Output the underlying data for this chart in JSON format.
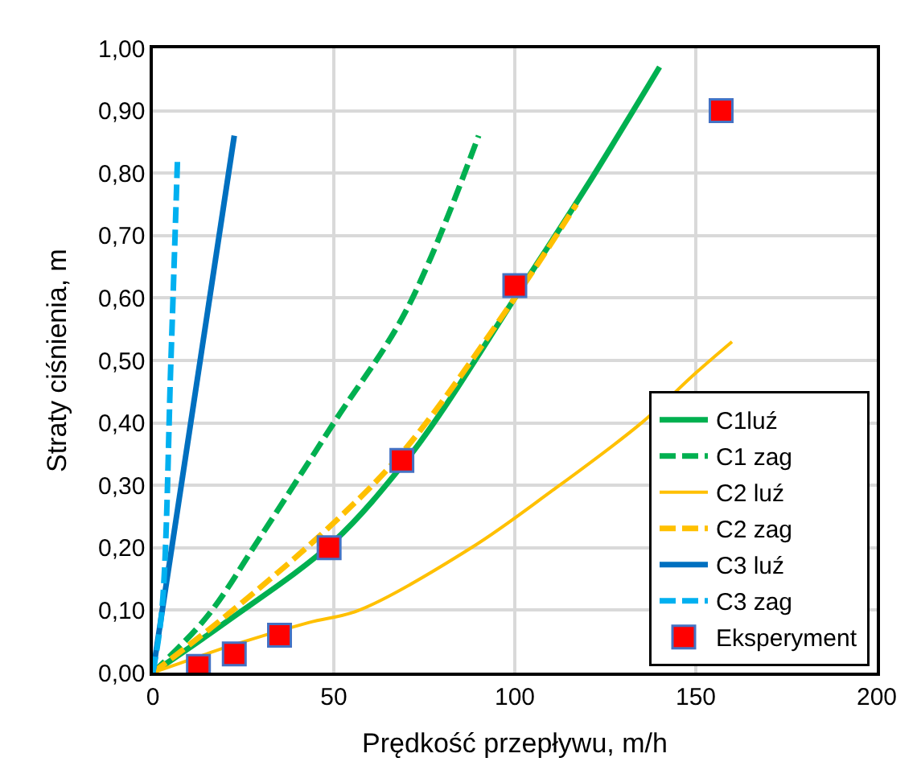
{
  "chart_data": {
    "type": "line",
    "xlabel": "Prędkość przepływu, m/h",
    "ylabel": "Straty ciśnienia, m",
    "xlim": [
      0,
      200
    ],
    "xticks": [
      0,
      50,
      100,
      150,
      200
    ],
    "ylim": [
      0,
      1
    ],
    "yticks": [
      {
        "value": 0,
        "label": "0,00"
      },
      {
        "value": 0.1,
        "label": "0,10"
      },
      {
        "value": 0.2,
        "label": "0,20"
      },
      {
        "value": 0.3,
        "label": "0,30"
      },
      {
        "value": 0.4,
        "label": "0,40"
      },
      {
        "value": 0.5,
        "label": "0,50"
      },
      {
        "value": 0.6,
        "label": "0,60"
      },
      {
        "value": 0.7,
        "label": "0,70"
      },
      {
        "value": 0.8,
        "label": "0,80"
      },
      {
        "value": 0.9,
        "label": "0,90"
      },
      {
        "value": 1,
        "label": "1,00"
      }
    ],
    "grid": true,
    "legend": "bottom right",
    "marker": "none",
    "series": [
      {
        "name": "C1luź",
        "color": "#00b050",
        "line_style": "solid",
        "x": [
          0,
          20,
          50,
          70,
          80,
          100,
          120,
          140
        ],
        "values": [
          0,
          0.08,
          0.21,
          0.34,
          0.42,
          0.6,
          0.78,
          0.97
        ]
      },
      {
        "name": "C1 zag",
        "color": "#00b050",
        "line_style": "dashed",
        "x": [
          0,
          15,
          30,
          50,
          70,
          90
        ],
        "values": [
          0,
          0.09,
          0.22,
          0.4,
          0.58,
          0.86
        ]
      },
      {
        "name": "C2 luź",
        "color": "#ffc000",
        "line_style": "solid",
        "x": [
          0,
          10,
          20,
          43,
          57,
          88,
          110,
          135,
          150,
          160
        ],
        "values": [
          0,
          0.02,
          0.04,
          0.08,
          0.1,
          0.2,
          0.29,
          0.4,
          0.48,
          0.53
        ]
      },
      {
        "name": "C2 zag",
        "color": "#ffc000",
        "line_style": "dashed",
        "x": [
          0,
          20,
          50,
          70,
          100,
          117
        ],
        "values": [
          0,
          0.09,
          0.24,
          0.36,
          0.6,
          0.75
        ]
      },
      {
        "name": "C3 luź",
        "color": "#0070c0",
        "line_style": "solid",
        "x": [
          0,
          22.5
        ],
        "values": [
          0,
          0.86
        ]
      },
      {
        "name": "C3 zag",
        "color": "#00b0f0",
        "line_style": "dashed",
        "x": [
          0,
          2.5,
          5,
          6.8
        ],
        "values": [
          0,
          0.1,
          0.5,
          0.82
        ]
      },
      {
        "name": "Eksperyment",
        "type": "scatter",
        "marker": "square",
        "color": "#ff0000",
        "x": [
          12.6,
          22.5,
          35,
          48.7,
          68.8,
          100,
          157
        ],
        "values": [
          0.01,
          0.03,
          0.06,
          0.2,
          0.34,
          0.62,
          0.9
        ]
      }
    ]
  }
}
